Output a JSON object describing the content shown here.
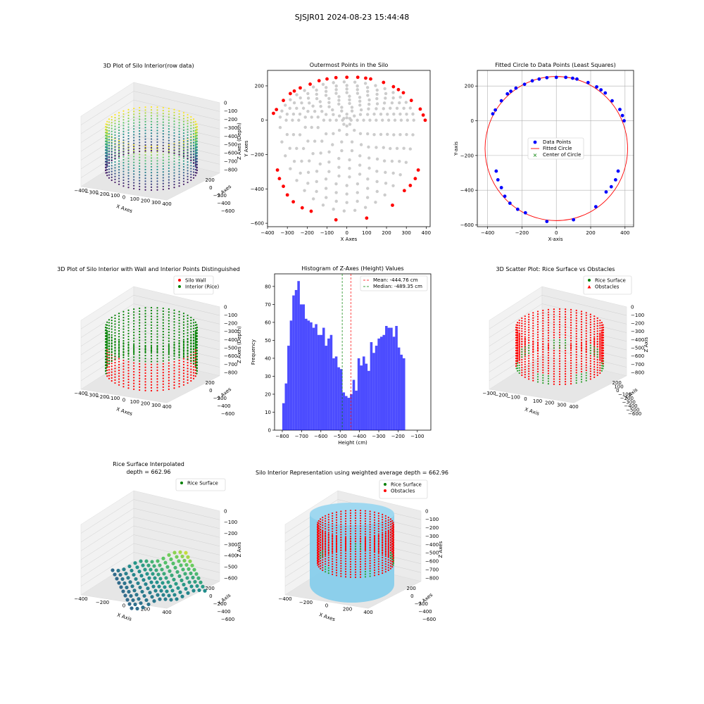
{
  "figure": {
    "suptitle": "SJSJR01 2024-08-23 15:44:48"
  },
  "chart_data": [
    {
      "type": "scatter",
      "projection": "3d",
      "title": "3D Plot of Silo Interior(row data)",
      "xlabel": "X Axes",
      "ylabel": "Y Axes",
      "zlabel": "Z Axes (Depth)",
      "xticks": [
        "−400",
        "−300",
        "−200",
        "−100",
        "0",
        "100",
        "200",
        "300",
        "400"
      ],
      "yticks": [
        "200",
        "0",
        "−200",
        "−400",
        "−600"
      ],
      "zticks": [
        "0",
        "−100",
        "−200",
        "−300",
        "−400",
        "−500",
        "−600",
        "−700",
        "−800"
      ],
      "colormap": "viridis"
    },
    {
      "type": "scatter",
      "title": "Outermost Points in the Silo",
      "xlabel": "X Axes",
      "ylabel": "Y Axes",
      "xlim": [
        -400,
        420
      ],
      "ylim": [
        -620,
        290
      ],
      "xticks": [
        -400,
        -300,
        -200,
        -100,
        0,
        100,
        200,
        300,
        400
      ],
      "yticks": [
        -600,
        -400,
        -200,
        0,
        200
      ],
      "interior_color": "#cccccc",
      "outer_color": "#ff0000",
      "outer_points": [
        [
          -370,
          40
        ],
        [
          -355,
          62
        ],
        [
          -320,
          115
        ],
        [
          -285,
          155
        ],
        [
          -265,
          170
        ],
        [
          -235,
          188
        ],
        [
          -185,
          210
        ],
        [
          -140,
          230
        ],
        [
          -100,
          240
        ],
        [
          -55,
          248
        ],
        [
          0,
          250
        ],
        [
          55,
          250
        ],
        [
          95,
          245
        ],
        [
          120,
          240
        ],
        [
          185,
          220
        ],
        [
          235,
          195
        ],
        [
          260,
          178
        ],
        [
          285,
          160
        ],
        [
          325,
          115
        ],
        [
          370,
          65
        ],
        [
          385,
          30
        ],
        [
          395,
          0
        ],
        [
          -350,
          -290
        ],
        [
          -340,
          -340
        ],
        [
          -320,
          -385
        ],
        [
          -300,
          -435
        ],
        [
          -270,
          -475
        ],
        [
          -225,
          -510
        ],
        [
          -180,
          -530
        ],
        [
          -55,
          -580
        ],
        [
          100,
          -570
        ],
        [
          230,
          -495
        ],
        [
          290,
          -410
        ],
        [
          320,
          -380
        ],
        [
          345,
          -340
        ],
        [
          360,
          -290
        ]
      ]
    },
    {
      "type": "scatter",
      "title": "Fitted Circle to Data Points (Least Squares)",
      "xlabel": "X-axis",
      "ylabel": "Y-axis",
      "xlim": [
        -460,
        450
      ],
      "ylim": [
        -610,
        290
      ],
      "xticks": [
        -400,
        -200,
        0,
        200,
        400
      ],
      "yticks": [
        -600,
        -400,
        -200,
        0,
        200
      ],
      "grid": true,
      "legend": [
        "Data Points",
        "Fitted Circle",
        "Center of Circle"
      ],
      "circle": {
        "cx": 0,
        "cy": -160,
        "r": 415
      },
      "points": [
        [
          -370,
          40
        ],
        [
          -355,
          62
        ],
        [
          -320,
          115
        ],
        [
          -285,
          155
        ],
        [
          -265,
          170
        ],
        [
          -235,
          188
        ],
        [
          -185,
          210
        ],
        [
          -140,
          230
        ],
        [
          -100,
          240
        ],
        [
          -55,
          248
        ],
        [
          0,
          250
        ],
        [
          55,
          250
        ],
        [
          95,
          245
        ],
        [
          120,
          240
        ],
        [
          185,
          220
        ],
        [
          235,
          195
        ],
        [
          260,
          178
        ],
        [
          285,
          160
        ],
        [
          325,
          115
        ],
        [
          370,
          65
        ],
        [
          385,
          30
        ],
        [
          395,
          0
        ],
        [
          -350,
          -290
        ],
        [
          -340,
          -340
        ],
        [
          -320,
          -385
        ],
        [
          -300,
          -435
        ],
        [
          -270,
          -475
        ],
        [
          -225,
          -510
        ],
        [
          -180,
          -530
        ],
        [
          -55,
          -580
        ],
        [
          100,
          -570
        ],
        [
          230,
          -495
        ],
        [
          290,
          -410
        ],
        [
          320,
          -380
        ],
        [
          345,
          -340
        ],
        [
          360,
          -290
        ]
      ]
    },
    {
      "type": "scatter",
      "projection": "3d",
      "title": "3D Plot of Silo Interior with Wall and Interior Points Distinguished",
      "xlabel": "X Axes",
      "ylabel": "Y Axes",
      "zlabel": "Z Axes (Depth)",
      "xticks": [
        "−400",
        "−300",
        "−200",
        "−100",
        "0",
        "100",
        "200",
        "300",
        "400"
      ],
      "yticks": [
        "200",
        "0",
        "−200",
        "−400",
        "−600"
      ],
      "zticks": [
        "0",
        "−100",
        "−200",
        "−300",
        "−400",
        "−500",
        "−600",
        "−700",
        "−800"
      ],
      "legend": [
        {
          "label": "Silo Wall",
          "color": "#ff0000"
        },
        {
          "label": "Interior (Rice)",
          "color": "#008000"
        }
      ]
    },
    {
      "type": "bar",
      "title": "Histogram of Z-Axes (Height) Values",
      "xlabel": "Height (cm)",
      "ylabel": "Frequency",
      "xlim": [
        -840,
        -30
      ],
      "ylim": [
        0,
        87
      ],
      "xticks": [
        -800,
        -700,
        -600,
        -500,
        -400,
        -300,
        -200,
        -100
      ],
      "yticks": [
        0,
        10,
        20,
        30,
        40,
        50,
        60,
        70,
        80
      ],
      "bin_start": -800,
      "bin_width": 13.0,
      "values": [
        15,
        26,
        47,
        61,
        75,
        78,
        83,
        70,
        70,
        62,
        61,
        60,
        57,
        59,
        53,
        53,
        57,
        47,
        51,
        53,
        40,
        41,
        35,
        34,
        21,
        19,
        18,
        20,
        28,
        22,
        40,
        36,
        41,
        37,
        33,
        49,
        43,
        47,
        51,
        52,
        53,
        58,
        57,
        57,
        52,
        58,
        46,
        42,
        40
      ],
      "color": "#0000ff",
      "mean": {
        "value": -444.76,
        "label": "Mean: -444.76 cm",
        "color": "#ff0000"
      },
      "median": {
        "value": -489.35,
        "label": "Median: -489.35 cm",
        "color": "#008000"
      }
    },
    {
      "type": "scatter",
      "projection": "3d",
      "title": "3D Scatter Plot: Rice Surface vs Obstacles",
      "xlabel": "X Axis",
      "ylabel": "Y Axis",
      "zlabel": "Z Axis",
      "xticks": [
        "−300",
        "−200",
        "−100",
        "0",
        "100",
        "200",
        "300",
        "400"
      ],
      "yticks": [
        "200",
        "100",
        "0",
        "−100",
        "−200",
        "−300",
        "−400",
        "−500",
        "−600"
      ],
      "zticks": [
        "0",
        "−100",
        "−200",
        "−300",
        "−400",
        "−500",
        "−600",
        "−700",
        "−800"
      ],
      "legend": [
        {
          "label": "Rice Surface",
          "color": "#008000"
        },
        {
          "label": "Obstacles",
          "color": "#ff0000"
        }
      ]
    },
    {
      "type": "scatter",
      "projection": "3d",
      "title": "Rice Surface Interpolated",
      "subtitle": "depth = 662.96",
      "xlabel": "X Axis",
      "ylabel": "Y Axis",
      "zlabel": "Z Axis",
      "xticks": [
        "−400",
        "−200",
        "0",
        "200",
        "400"
      ],
      "yticks": [
        "200",
        "0",
        "−200",
        "−400",
        "−600"
      ],
      "zticks": [
        "0",
        "−100",
        "−200",
        "−300",
        "−400",
        "−500",
        "−600"
      ],
      "legend": [
        {
          "label": "Rice Surface",
          "color": "#008000"
        }
      ]
    },
    {
      "type": "scatter",
      "projection": "3d",
      "title": "Silo Interior Representation using weighted average depth = 662.96",
      "xlabel": "X Axes",
      "ylabel": "Y Axes",
      "zlabel": "Z Axes",
      "xticks": [
        "−400",
        "−200",
        "0",
        "200",
        "400"
      ],
      "yticks": [
        "200",
        "0",
        "−200",
        "−400",
        "−600"
      ],
      "zticks": [
        "0",
        "−100",
        "−200",
        "−300",
        "−400",
        "−500",
        "−600",
        "−700",
        "−800"
      ],
      "legend": [
        {
          "label": "Rice Surface",
          "color": "#008000"
        },
        {
          "label": "Obstacles",
          "color": "#ff0000"
        }
      ]
    }
  ]
}
